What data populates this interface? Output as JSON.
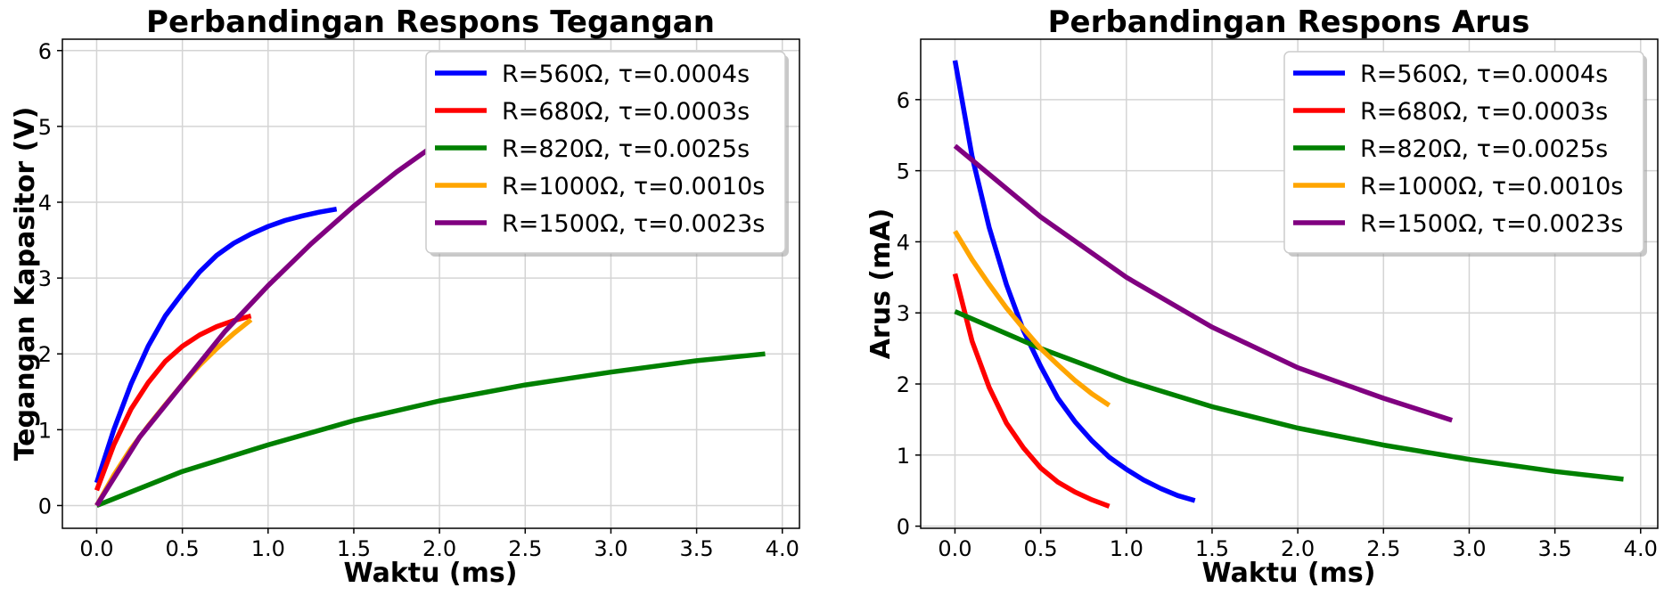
{
  "chart_data": [
    {
      "type": "line",
      "title": "Perbandingan Respons Tegangan",
      "xlabel": "Waktu (ms)",
      "ylabel": "Tegangan Kapasitor (V)",
      "xlim": [
        -0.2,
        4.1
      ],
      "ylim": [
        -0.3,
        6.15
      ],
      "xticks": [
        "0.0",
        "0.5",
        "1.0",
        "1.5",
        "2.0",
        "2.5",
        "3.0",
        "3.5",
        "4.0"
      ],
      "yticks": [
        "0",
        "1",
        "2",
        "3",
        "4",
        "5",
        "6"
      ],
      "grid": true,
      "legend_position": "top-right",
      "series": [
        {
          "name": "R=560Ω, τ=0.0004s",
          "color": "#0000ff",
          "x": [
            0,
            0.1,
            0.2,
            0.3,
            0.4,
            0.5,
            0.6,
            0.7,
            0.8,
            0.9,
            1.0,
            1.1,
            1.2,
            1.3,
            1.4
          ],
          "y": [
            0.3,
            1.0,
            1.6,
            2.1,
            2.5,
            2.8,
            3.08,
            3.3,
            3.46,
            3.58,
            3.68,
            3.76,
            3.82,
            3.87,
            3.91
          ]
        },
        {
          "name": "R=680Ω, τ=0.0003s",
          "color": "#ff0000",
          "x": [
            0,
            0.1,
            0.2,
            0.3,
            0.4,
            0.5,
            0.6,
            0.7,
            0.8,
            0.9
          ],
          "y": [
            0.2,
            0.8,
            1.27,
            1.62,
            1.9,
            2.1,
            2.25,
            2.36,
            2.44,
            2.5
          ]
        },
        {
          "name": "R=820Ω, τ=0.0025s",
          "color": "#008000",
          "x": [
            0,
            0.5,
            1.0,
            1.5,
            2.0,
            2.5,
            3.0,
            3.5,
            3.9
          ],
          "y": [
            0,
            0.45,
            0.8,
            1.12,
            1.38,
            1.59,
            1.76,
            1.91,
            2.0
          ]
        },
        {
          "name": "R=1000Ω, τ=0.0010s",
          "color": "#ffa500",
          "x": [
            0,
            0.1,
            0.2,
            0.3,
            0.4,
            0.5,
            0.6,
            0.7,
            0.8,
            0.9
          ],
          "y": [
            0,
            0.4,
            0.75,
            1.05,
            1.33,
            1.6,
            1.85,
            2.07,
            2.27,
            2.45
          ]
        },
        {
          "name": "R=1500Ω, τ=0.0023s",
          "color": "#800080",
          "x": [
            0,
            0.25,
            0.5,
            0.75,
            1.0,
            1.25,
            1.5,
            1.75,
            2.0
          ],
          "y": [
            0,
            0.9,
            1.6,
            2.3,
            2.9,
            3.45,
            3.95,
            4.4,
            4.8
          ]
        }
      ]
    },
    {
      "type": "line",
      "title": "Perbandingan Respons Arus",
      "xlabel": "Waktu (ms)",
      "ylabel": "Arus (mA)",
      "xlim": [
        -0.2,
        4.1
      ],
      "ylim": [
        -0.03,
        6.85
      ],
      "xticks": [
        "0.0",
        "0.5",
        "1.0",
        "1.5",
        "2.0",
        "2.5",
        "3.0",
        "3.5",
        "4.0"
      ],
      "yticks": [
        "0",
        "1",
        "2",
        "3",
        "4",
        "5",
        "6"
      ],
      "grid": true,
      "legend_position": "top-right",
      "series": [
        {
          "name": "R=560Ω, τ=0.0004s",
          "color": "#0000ff",
          "x": [
            0,
            0.1,
            0.2,
            0.3,
            0.4,
            0.5,
            0.6,
            0.7,
            0.8,
            0.9,
            1.0,
            1.1,
            1.2,
            1.3,
            1.4
          ],
          "y": [
            6.55,
            5.2,
            4.2,
            3.4,
            2.75,
            2.25,
            1.8,
            1.47,
            1.2,
            0.97,
            0.8,
            0.65,
            0.53,
            0.43,
            0.36
          ]
        },
        {
          "name": "R=680Ω, τ=0.0003s",
          "color": "#ff0000",
          "x": [
            0,
            0.1,
            0.2,
            0.3,
            0.4,
            0.5,
            0.6,
            0.7,
            0.8,
            0.9
          ],
          "y": [
            3.55,
            2.6,
            1.95,
            1.45,
            1.1,
            0.82,
            0.62,
            0.48,
            0.37,
            0.28
          ]
        },
        {
          "name": "R=820Ω, τ=0.0025s",
          "color": "#008000",
          "x": [
            0,
            0.5,
            1.0,
            1.5,
            2.0,
            2.5,
            3.0,
            3.5,
            3.9
          ],
          "y": [
            3.02,
            2.5,
            2.05,
            1.68,
            1.38,
            1.14,
            0.94,
            0.77,
            0.66
          ]
        },
        {
          "name": "R=1000Ω, τ=0.0010s",
          "color": "#ffa500",
          "x": [
            0,
            0.1,
            0.2,
            0.3,
            0.4,
            0.5,
            0.6,
            0.7,
            0.8,
            0.9
          ],
          "y": [
            4.15,
            3.75,
            3.4,
            3.07,
            2.78,
            2.5,
            2.27,
            2.05,
            1.86,
            1.7
          ]
        },
        {
          "name": "R=1500Ω, τ=0.0023s",
          "color": "#800080",
          "x": [
            0,
            0.5,
            1.0,
            1.5,
            2.0,
            2.5,
            2.9
          ],
          "y": [
            5.35,
            4.35,
            3.5,
            2.8,
            2.23,
            1.8,
            1.49
          ]
        }
      ]
    }
  ]
}
